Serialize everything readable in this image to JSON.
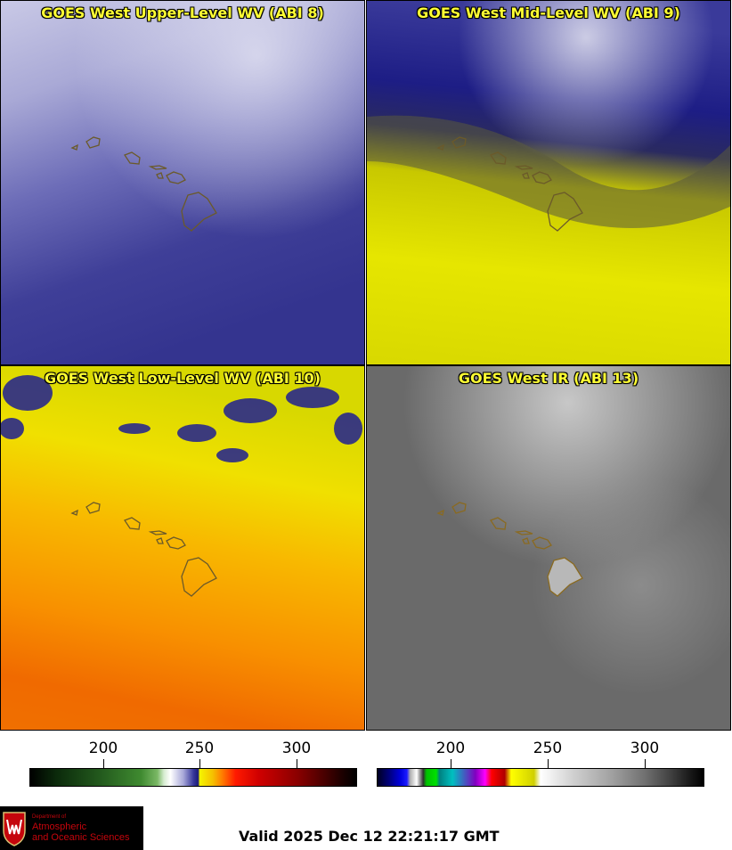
{
  "panels": [
    {
      "id": "upper",
      "title": "GOES West Upper-Level WV (ABI 8)"
    },
    {
      "id": "mid",
      "title": "GOES West Mid-Level WV (ABI 9)"
    },
    {
      "id": "low",
      "title": "GOES West Low-Level WV (ABI 10)"
    },
    {
      "id": "ir",
      "title": "GOES West IR (ABI 13)"
    }
  ],
  "colorbars": [
    {
      "id": "wv",
      "ticks": [
        "200",
        "250",
        "300"
      ]
    },
    {
      "id": "ir",
      "ticks": [
        "200",
        "250",
        "300"
      ]
    }
  ],
  "logo": {
    "dept": "Department of",
    "line1": "Atmospheric",
    "line2": "and Oceanic Sciences"
  },
  "valid_time": "Valid 2025 Dec 12 22:21:17 GMT",
  "colors": {
    "title_text": "#ffff33",
    "coastline": "#6b5a2a"
  }
}
